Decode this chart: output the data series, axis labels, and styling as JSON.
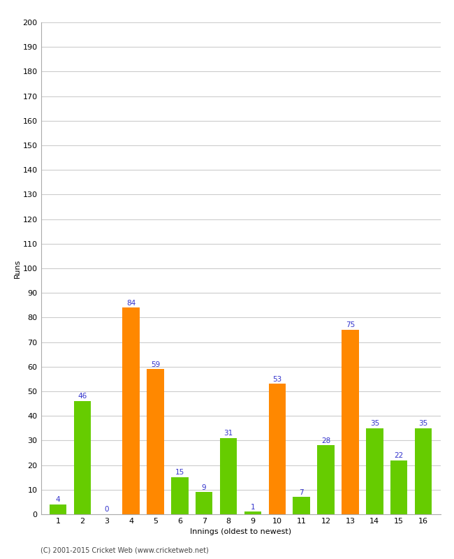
{
  "xlabel": "Innings (oldest to newest)",
  "ylabel": "Runs",
  "innings": [
    1,
    2,
    3,
    4,
    5,
    6,
    7,
    8,
    9,
    10,
    11,
    12,
    13,
    14,
    15,
    16
  ],
  "values": [
    4,
    46,
    0,
    84,
    59,
    15,
    9,
    31,
    1,
    53,
    7,
    28,
    75,
    35,
    22,
    35
  ],
  "colors": [
    "#66cc00",
    "#66cc00",
    "#66cc00",
    "#ff8800",
    "#ff8800",
    "#66cc00",
    "#66cc00",
    "#66cc00",
    "#66cc00",
    "#ff8800",
    "#66cc00",
    "#66cc00",
    "#ff8800",
    "#66cc00",
    "#66cc00",
    "#66cc00"
  ],
  "ylim": [
    0,
    200
  ],
  "yticks": [
    0,
    10,
    20,
    30,
    40,
    50,
    60,
    70,
    80,
    90,
    100,
    110,
    120,
    130,
    140,
    150,
    160,
    170,
    180,
    190,
    200
  ],
  "label_color": "#3333cc",
  "background_color": "#ffffff",
  "grid_color": "#cccccc",
  "footer": "(C) 2001-2015 Cricket Web (www.cricketweb.net)",
  "footer_color": "#444444",
  "axis_label_fontsize": 8,
  "tick_fontsize": 8,
  "bar_label_fontsize": 7.5
}
